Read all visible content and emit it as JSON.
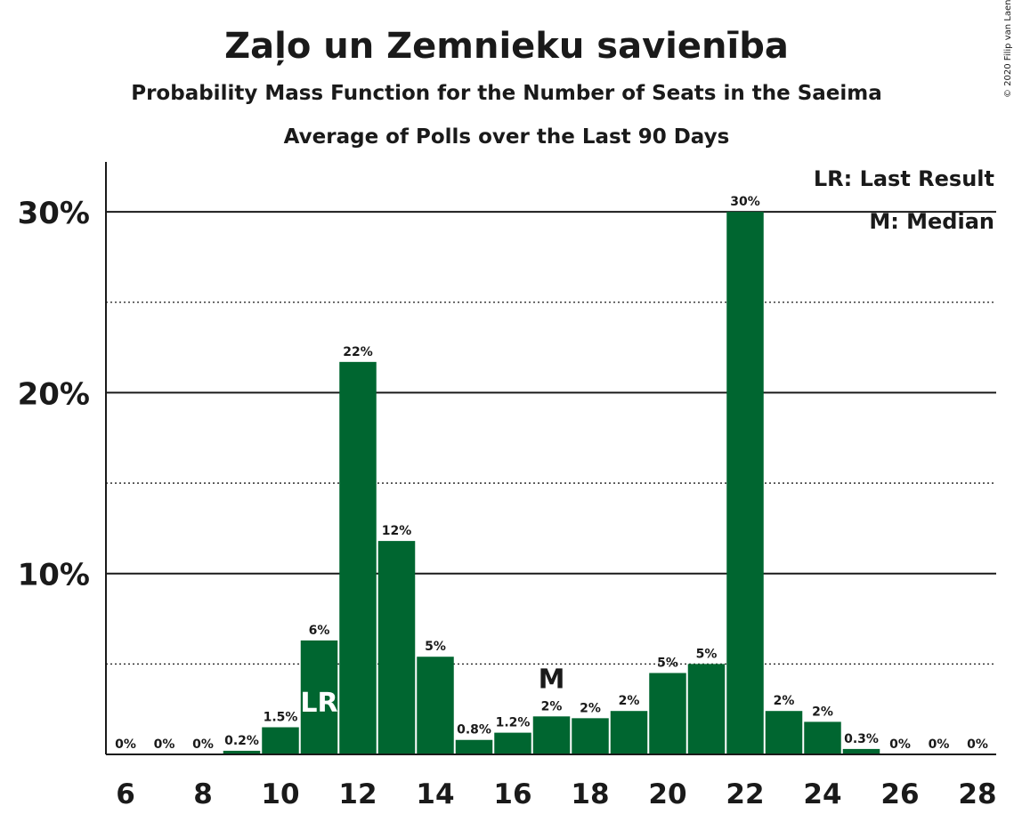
{
  "copyright": "© 2020 Filip van Laenen",
  "chart_data": {
    "type": "bar",
    "title": "Zaļo un Zemnieku savienība",
    "subtitle": "Probability Mass Function for the Number of Seats in the Saeima",
    "subtitle2": "Average of Polls over the Last 90 Days",
    "bar_color": "#006630",
    "x": [
      6,
      7,
      8,
      9,
      10,
      11,
      12,
      13,
      14,
      15,
      16,
      17,
      18,
      19,
      20,
      21,
      22,
      23,
      24,
      25,
      26,
      27,
      28
    ],
    "values": [
      0,
      0,
      0,
      0.2,
      1.5,
      6.3,
      21.7,
      11.8,
      5.4,
      0.8,
      1.2,
      2.1,
      2.0,
      2.4,
      4.5,
      5.0,
      30.0,
      2.4,
      1.8,
      0.3,
      0,
      0,
      0
    ],
    "labels": [
      "0%",
      "0%",
      "0%",
      "0.2%",
      "1.5%",
      "6%",
      "22%",
      "12%",
      "5%",
      "0.8%",
      "1.2%",
      "2%",
      "2%",
      "2%",
      "5%",
      "5%",
      "30%",
      "2%",
      "2%",
      "0.3%",
      "0%",
      "0%",
      "0%"
    ],
    "x_tick_labels": [
      "6",
      "8",
      "10",
      "12",
      "14",
      "16",
      "18",
      "20",
      "22",
      "24",
      "26",
      "28"
    ],
    "y_tick_labels": [
      "10%",
      "20%",
      "30%"
    ],
    "ylim": [
      0,
      32.8
    ],
    "grid": "solid at 10% steps, dotted at 5% midpoints",
    "last_result": {
      "x": 11,
      "label": "LR"
    },
    "median": {
      "x": 17,
      "label": "M"
    },
    "legend": [
      "LR: Last Result",
      "M: Median"
    ],
    "legend_placement": "top-right"
  }
}
